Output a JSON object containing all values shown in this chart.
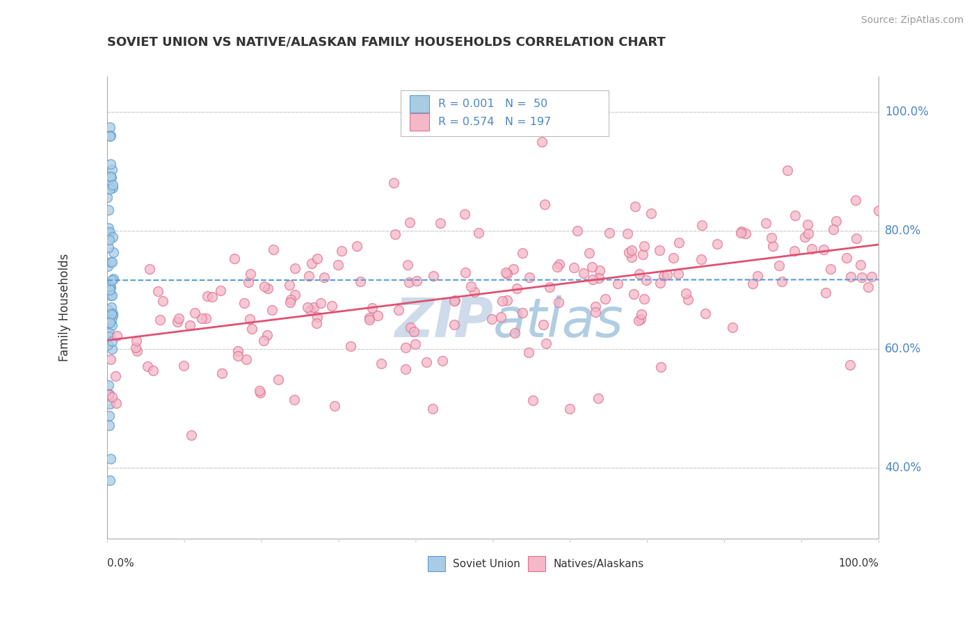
{
  "title": "SOVIET UNION VS NATIVE/ALASKAN FAMILY HOUSEHOLDS CORRELATION CHART",
  "source": "Source: ZipAtlas.com",
  "ylabel": "Family Households",
  "legend_blue_label": "Soviet Union",
  "legend_pink_label": "Natives/Alaskans",
  "blue_marker_color": "#a8cce4",
  "blue_edge_color": "#5b9bd5",
  "pink_marker_color": "#f4b8c8",
  "pink_edge_color": "#e07090",
  "blue_line_color": "#5b9bd5",
  "pink_line_color": "#e05070",
  "background_color": "#ffffff",
  "grid_color": "#cccccc",
  "watermark_color": "#c8d8e8",
  "text_color": "#333333",
  "axis_label_color": "#4a86c8",
  "ytick_labels": [
    "100.0%",
    "80.0%",
    "60.0%",
    "40.0%"
  ],
  "ytick_values": [
    1.0,
    0.8,
    0.6,
    0.4
  ],
  "xlim": [
    0.0,
    1.0
  ],
  "ylim": [
    0.28,
    1.06
  ]
}
